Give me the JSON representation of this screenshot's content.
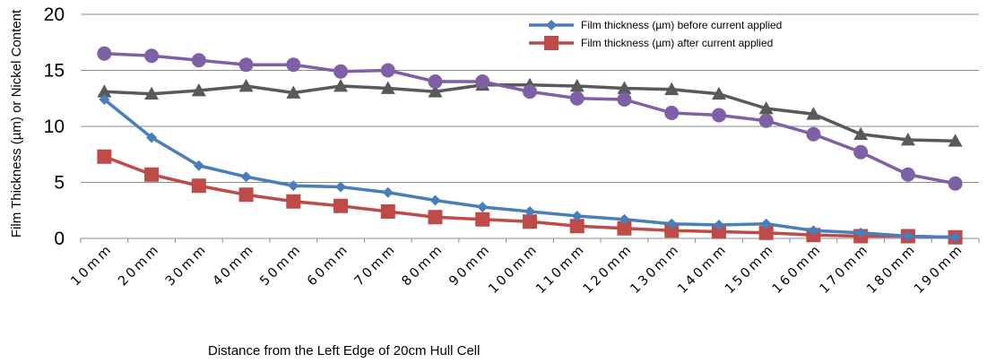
{
  "chart_data": {
    "type": "line",
    "title": "",
    "xlabel": "Distance from the Left Edge of 20cm Hull Cell",
    "ylabel": "Film Thickness (µm) or  Nickel Content",
    "ylim": [
      0,
      20
    ],
    "yticks": [
      0,
      5,
      10,
      15,
      20
    ],
    "grid": "horizontal",
    "legend_position": "top-right",
    "categories": [
      "10mm",
      "20mm",
      "30mm",
      "40mm",
      "50mm",
      "60mm",
      "70mm",
      "80mm",
      "90mm",
      "100mm",
      "110mm",
      "120mm",
      "130mm",
      "140mm",
      "150mm",
      "160mm",
      "170mm",
      "180mm",
      "190mm"
    ],
    "series": [
      {
        "name": "Film thickness (µm) before current applied",
        "color": "#4a7ebb",
        "marker": "diamond",
        "values": [
          12.4,
          9.0,
          6.5,
          5.5,
          4.7,
          4.6,
          4.1,
          3.4,
          2.8,
          2.4,
          2.0,
          1.7,
          1.3,
          1.2,
          1.3,
          0.7,
          0.5,
          0.2,
          0.1
        ]
      },
      {
        "name": "Film thickness (µm) after current applied",
        "color": "#be4b48",
        "marker": "square",
        "values": [
          7.3,
          5.7,
          4.7,
          3.9,
          3.3,
          2.9,
          2.4,
          1.9,
          1.7,
          1.5,
          1.1,
          0.9,
          0.7,
          0.6,
          0.5,
          0.3,
          0.2,
          0.2,
          0.1
        ]
      },
      {
        "name": "",
        "color": "#7f5fa5",
        "marker": "circle",
        "values": [
          16.5,
          16.3,
          15.9,
          15.5,
          15.5,
          14.9,
          15.0,
          14.0,
          14.0,
          13.1,
          12.5,
          12.4,
          11.2,
          11.0,
          10.5,
          9.3,
          7.7,
          5.7,
          4.9
        ]
      },
      {
        "name": "",
        "color": "#595959",
        "marker": "triangle",
        "values": [
          13.1,
          12.9,
          13.2,
          13.6,
          13.0,
          13.6,
          13.4,
          13.1,
          13.7,
          13.7,
          13.6,
          13.4,
          13.3,
          12.9,
          11.6,
          11.1,
          9.3,
          8.8,
          8.7
        ]
      }
    ]
  }
}
